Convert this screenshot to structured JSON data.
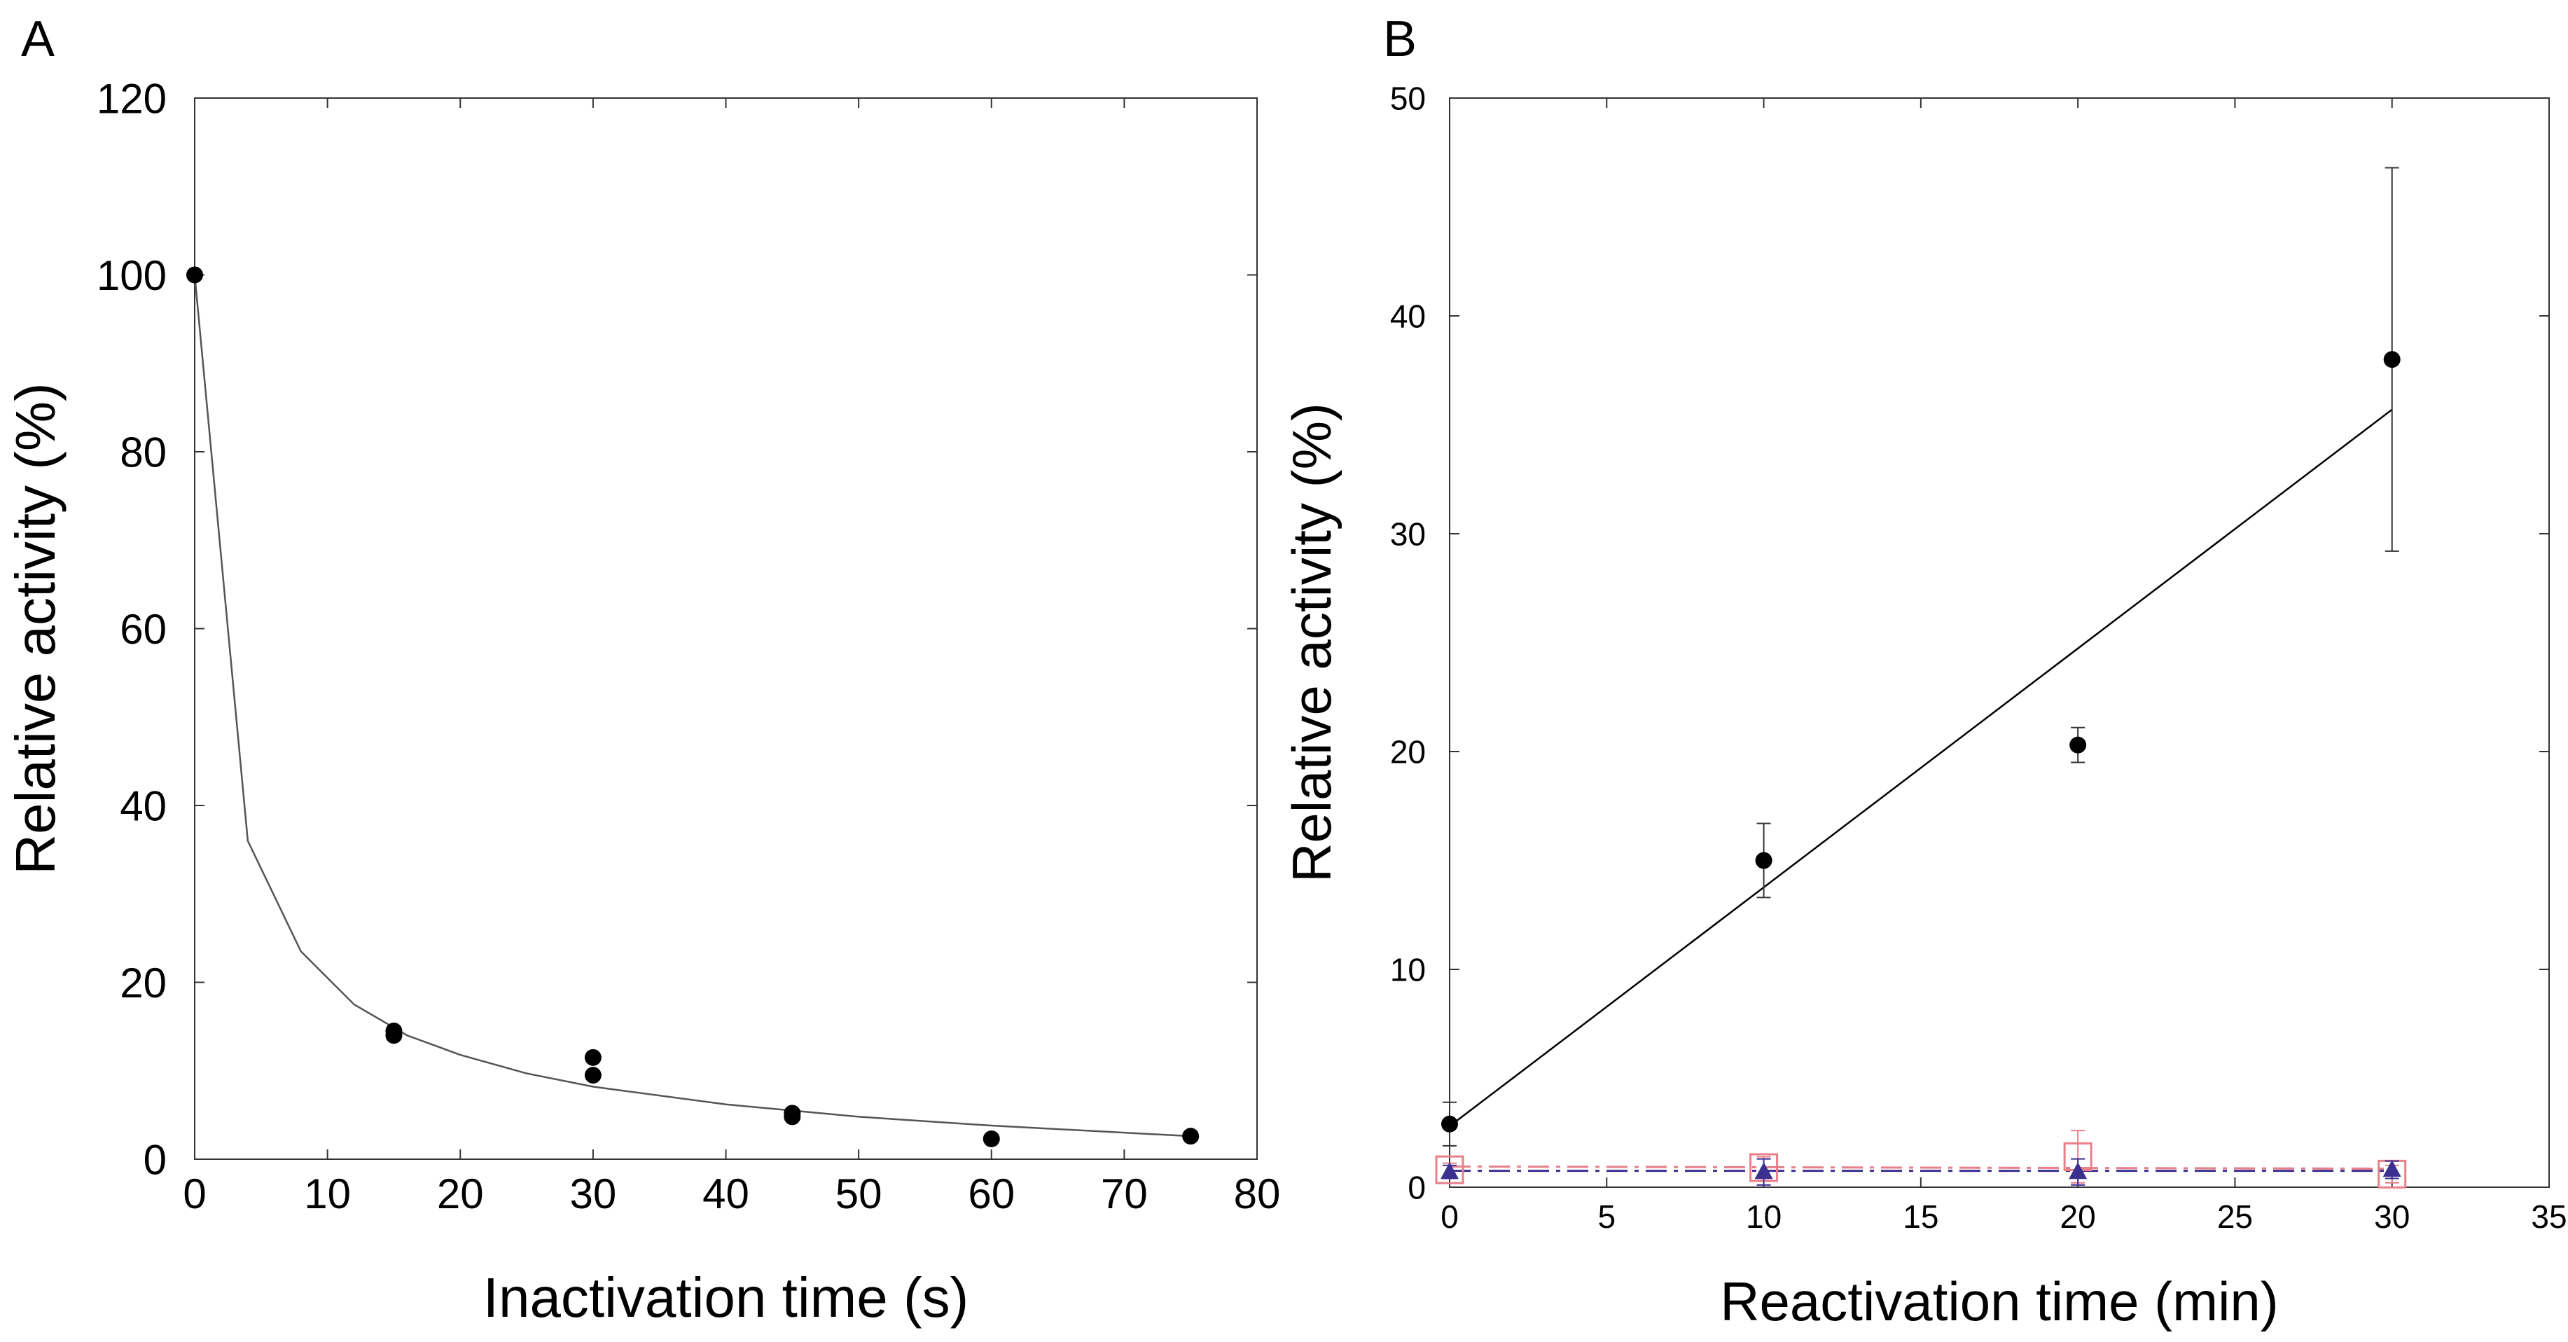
{
  "chart_data": [
    {
      "panel": "A",
      "type": "scatter",
      "xlabel": "Inactivation time (s)",
      "ylabel": "Relative activity (%)",
      "xlim": [
        0,
        80
      ],
      "ylim": [
        0,
        120
      ],
      "xticks": [
        "0",
        "10",
        "20",
        "30",
        "40",
        "50",
        "60",
        "70",
        "80"
      ],
      "yticks": [
        "0",
        "20",
        "40",
        "60",
        "80",
        "100",
        "120"
      ],
      "points": [
        {
          "x": 0,
          "y": 100
        },
        {
          "x": 15,
          "y": 14
        },
        {
          "x": 15,
          "y": 14.5
        },
        {
          "x": 30,
          "y": 9.5
        },
        {
          "x": 30,
          "y": 11.5
        },
        {
          "x": 45,
          "y": 4.8
        },
        {
          "x": 45,
          "y": 5.2
        },
        {
          "x": 60,
          "y": 2.3
        },
        {
          "x": 75,
          "y": 2.6
        }
      ],
      "fit_curve": {
        "x": [
          0,
          4,
          8,
          12,
          16,
          20,
          25,
          30,
          40,
          50,
          60,
          70,
          75
        ],
        "y": [
          100,
          36,
          23.5,
          17.5,
          14,
          11.8,
          9.7,
          8.2,
          6.2,
          4.8,
          3.8,
          3.0,
          2.6
        ]
      }
    },
    {
      "panel": "B",
      "type": "scatter",
      "xlabel": "Reactivation time (min)",
      "ylabel": "Relative activity (%)",
      "xlim": [
        0,
        35
      ],
      "ylim": [
        0,
        50
      ],
      "xticks": [
        "0",
        "5",
        "10",
        "15",
        "20",
        "25",
        "30",
        "35"
      ],
      "yticks": [
        "0",
        "10",
        "20",
        "30",
        "40",
        "50"
      ],
      "series": [
        {
          "name": "filled circles",
          "marker": "circle",
          "color": "#000000",
          "x": [
            0,
            10,
            20,
            30
          ],
          "y": [
            2.9,
            15,
            20.3,
            38
          ],
          "err": [
            1,
            1.7,
            0.8,
            8.8
          ],
          "fit": {
            "x": [
              0,
              30
            ],
            "y": [
              2.8,
              35.7
            ],
            "color": "#000000",
            "dash": "solid"
          }
        },
        {
          "name": "open squares",
          "marker": "square",
          "color": "#e87f8a",
          "x": [
            0,
            10,
            20,
            30
          ],
          "y": [
            0.8,
            0.9,
            1.4,
            0.6
          ],
          "err": [
            0.3,
            0.5,
            1.2,
            0.4
          ],
          "fit": {
            "x": [
              0,
              30
            ],
            "y": [
              0.95,
              0.85
            ],
            "color": "#e87f8a",
            "dash": "dashed"
          }
        },
        {
          "name": "triangles",
          "marker": "triangle",
          "color": "#3b2f8f",
          "x": [
            0,
            10,
            20,
            30
          ],
          "y": [
            0.7,
            0.7,
            0.7,
            0.8
          ],
          "err": [
            0.3,
            0.6,
            0.6,
            0.4
          ],
          "fit": {
            "x": [
              0,
              30
            ],
            "y": [
              0.75,
              0.75
            ],
            "color": "#3b2f8f",
            "dash": "dashed"
          }
        }
      ]
    }
  ]
}
